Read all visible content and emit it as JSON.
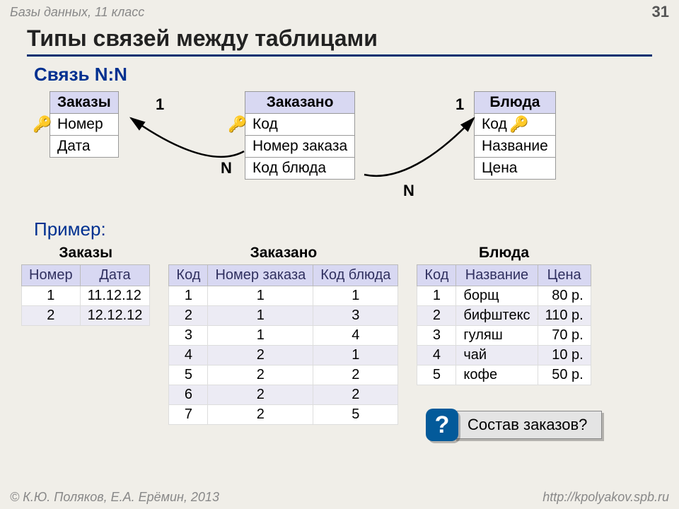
{
  "header": {
    "left": "Базы данных, 11 класс",
    "page": "31"
  },
  "title": "Типы связей между таблицами",
  "section": "Связь N:N",
  "schema": {
    "orders": {
      "title": "Заказы",
      "fields": [
        "Номер",
        "Дата"
      ]
    },
    "ordered": {
      "title": "Заказано",
      "fields": [
        "Код",
        "Номер заказа",
        "Код блюда"
      ]
    },
    "dishes": {
      "title": "Блюда",
      "fields": [
        "Код",
        "Название",
        "Цена"
      ]
    },
    "mult": {
      "left_one": "1",
      "left_n": "N",
      "right_one": "1",
      "right_n": "N"
    }
  },
  "example_label": "Пример:",
  "tables": {
    "orders": {
      "title": "Заказы",
      "columns": [
        "Номер",
        "Дата"
      ],
      "rows": [
        [
          "1",
          "11.12.12"
        ],
        [
          "2",
          "12.12.12"
        ]
      ]
    },
    "ordered": {
      "title": "Заказано",
      "columns": [
        "Код",
        "Номер заказа",
        "Код блюда"
      ],
      "rows": [
        [
          "1",
          "1",
          "1"
        ],
        [
          "2",
          "1",
          "3"
        ],
        [
          "3",
          "1",
          "4"
        ],
        [
          "4",
          "2",
          "1"
        ],
        [
          "5",
          "2",
          "2"
        ],
        [
          "6",
          "2",
          "2"
        ],
        [
          "7",
          "2",
          "5"
        ]
      ]
    },
    "dishes": {
      "title": "Блюда",
      "columns": [
        "Код",
        "Название",
        "Цена"
      ],
      "rows": [
        [
          "1",
          "борщ",
          "80 р."
        ],
        [
          "2",
          "бифштекс",
          "110 р."
        ],
        [
          "3",
          "гуляш",
          "70 р."
        ],
        [
          "4",
          "чай",
          "10 р."
        ],
        [
          "5",
          "кофе",
          "50 р."
        ]
      ]
    }
  },
  "question": "Состав заказов?",
  "q_mark": "?",
  "footer": {
    "left": "© К.Ю. Поляков, Е.А. Ерёмин, 2013",
    "right": "http://kpolyakov.spb.ru"
  },
  "colors": {
    "header_bg": "#d8d8f2",
    "accent": "#003090",
    "page_bg": "#f0eee8"
  }
}
